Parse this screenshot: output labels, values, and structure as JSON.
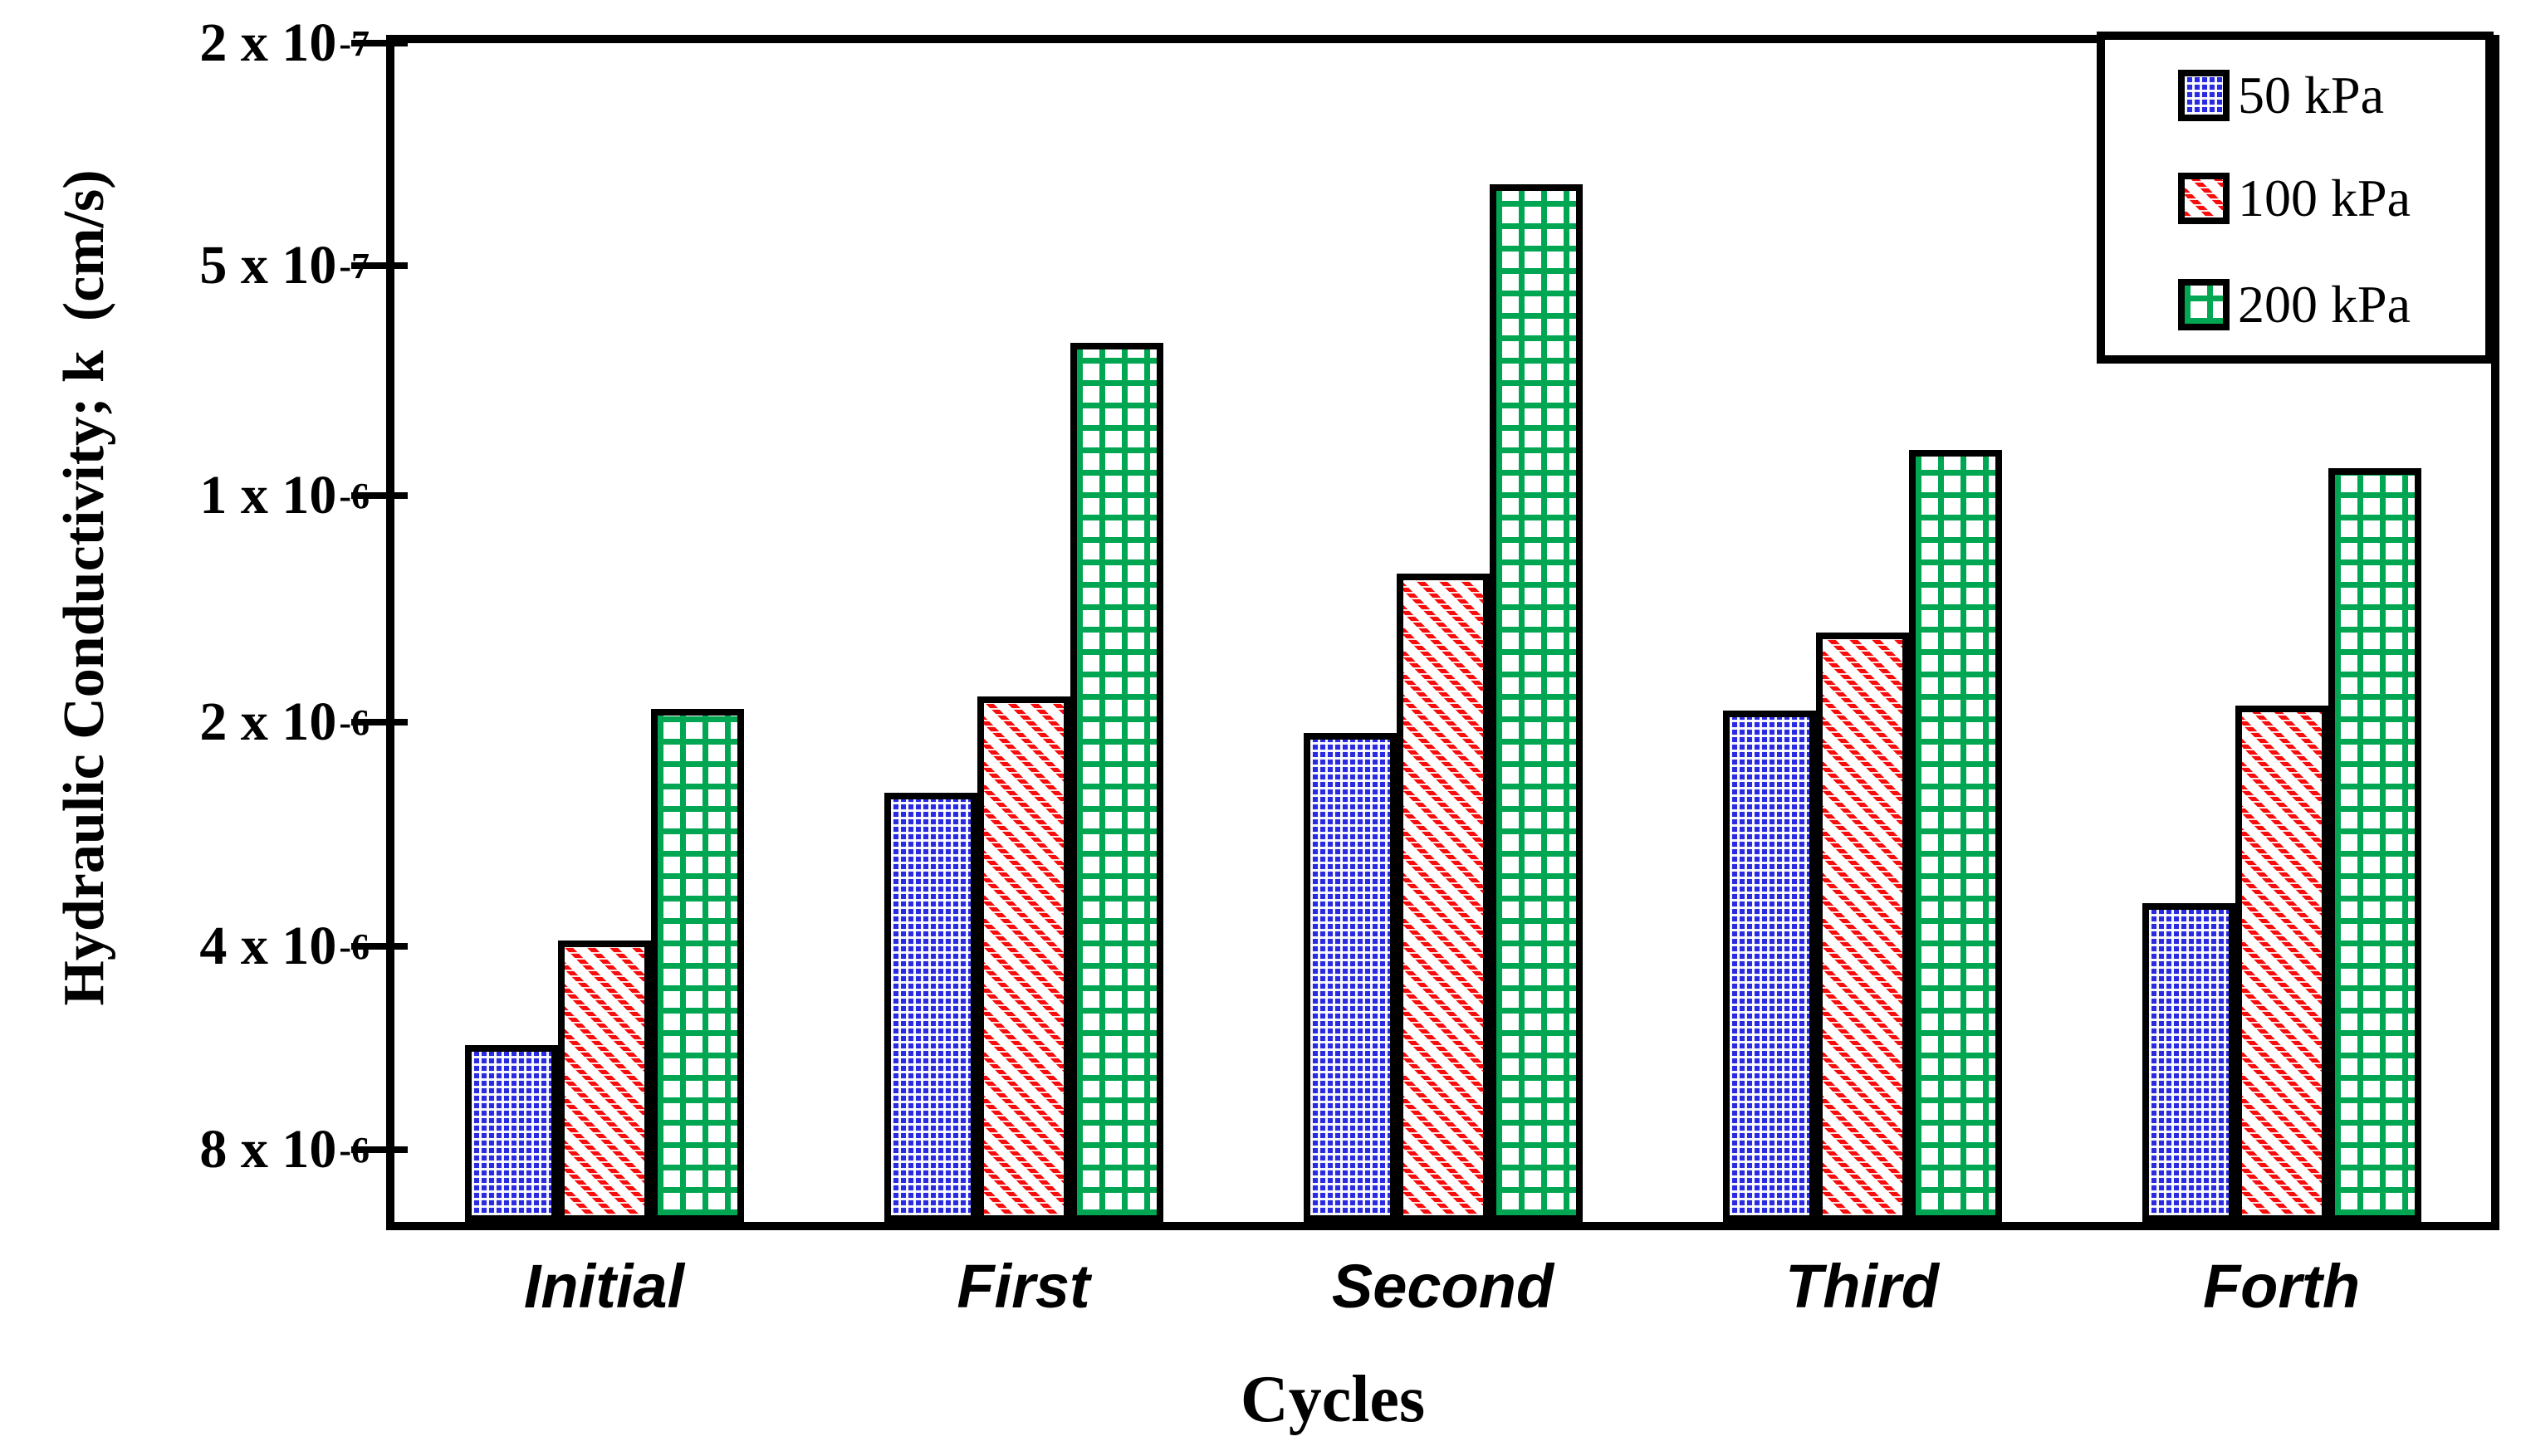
{
  "figure": {
    "background": "#ffffff"
  },
  "y_axis": {
    "title": "Hydraulic Conductivity; k  (cm/s)"
  },
  "x_axis": {
    "title": "Cycles"
  },
  "legend": {
    "items": [
      {
        "label": "50 kPa",
        "pattern": "blue-checker",
        "color": "#2a2ae0"
      },
      {
        "label": "100 kPa",
        "pattern": "red-diagonal",
        "color": "#f80c0c"
      },
      {
        "label": "200 kPa",
        "pattern": "green-grid",
        "color": "#00a651"
      }
    ]
  },
  "chart_data": {
    "type": "bar",
    "title": "",
    "xlabel": "Cycles",
    "ylabel": "Hydraulic Conductivity; k (cm/s)",
    "y_scale": "log10-reversed (values increase downward)",
    "ylim": [
      2e-07,
      1.05e-05
    ],
    "grid": false,
    "legend_position": "top-right-inside",
    "categories": [
      "Initial",
      "First",
      "Second",
      "Third",
      "Forth"
    ],
    "series": [
      {
        "name": "50 kPa",
        "color": "#2a2ae0",
        "pattern": "blue-checker",
        "values": [
          5.6e-06,
          2.49e-06,
          2.07e-06,
          1.93e-06,
          3.5e-06
        ]
      },
      {
        "name": "100 kPa",
        "color": "#f80c0c",
        "pattern": "red-diagonal",
        "values": [
          3.93e-06,
          1.85e-06,
          1.27e-06,
          1.52e-06,
          1.9e-06
        ]
      },
      {
        "name": "200 kPa",
        "color": "#00a651",
        "pattern": "green-grid",
        "values": [
          1.92e-06,
          6.3e-07,
          3.57e-07,
          8.7e-07,
          9.2e-07
        ]
      }
    ],
    "yticks": [
      {
        "prefix": "2 x 10",
        "exp": "-7",
        "value": 2e-07
      },
      {
        "prefix": "5 x 10",
        "exp": "-7",
        "value": 5e-07
      },
      {
        "prefix": "1 x 10",
        "exp": "-6",
        "value": 1e-06
      },
      {
        "prefix": "2 x 10",
        "exp": "-6",
        "value": 2e-06
      },
      {
        "prefix": "4 x 10",
        "exp": "-6",
        "value": 4e-06
      },
      {
        "prefix": "8 x 10",
        "exp": "-6",
        "value": 8e-06
      }
    ]
  }
}
